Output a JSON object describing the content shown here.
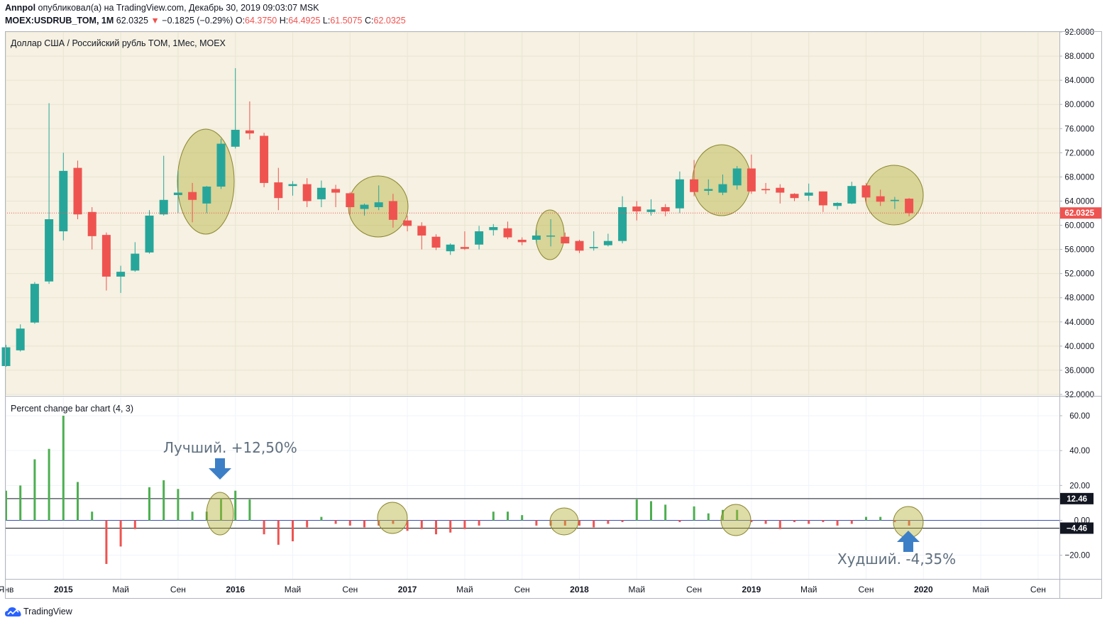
{
  "header": {
    "author": "Annpol",
    "published_text": "опубликовал(а) на TradingView.com, Декабрь 30, 2019 09:03:07 MSK",
    "symbol": "MOEX:USDRUB_TOM, 1M",
    "last": "62.0325",
    "change_arrow": "▼",
    "change": "−0.1825 (−0.29%)",
    "o_label": "O:",
    "o_value": "64.3750",
    "h_label": "H:",
    "h_value": "64.4925",
    "l_label": "L:",
    "l_value": "61.5075",
    "c_label": "C:",
    "c_value": "62.0325"
  },
  "footer": {
    "logo_text": "TradingView",
    "logo_icon": "tradingview-cloud-icon"
  },
  "colors": {
    "up": "#26a69a",
    "down": "#ef5350",
    "bar_up": "#4caf50",
    "bar_down": "#ef5350",
    "pane_bg": "#f6f1e2",
    "ellipse_fill": "#b5b13c",
    "ellipse_stroke": "#8a8630",
    "price_line": "#ef5350",
    "arrow": "#3d7fc7",
    "annotation_text": "#5f6f7e"
  },
  "chart_data": [
    {
      "type": "candlestick",
      "title": "Доллар США / Российский рубль TOM, 1Мес, MOEX",
      "ylim": [
        32,
        92
      ],
      "y_ticks": [
        "92.0000",
        "88.0000",
        "84.0000",
        "80.0000",
        "76.0000",
        "72.0000",
        "68.0000",
        "64.0000",
        "60.0000",
        "56.0000",
        "52.0000",
        "48.0000",
        "44.0000",
        "40.0000",
        "36.0000",
        "32.0000"
      ],
      "price_label": "62.0325",
      "price_line": 62.0325,
      "ohlc": [
        [
          36.7,
          40.2,
          36.6,
          39.8
        ],
        [
          39.3,
          43.6,
          39.1,
          42.9
        ],
        [
          43.9,
          50.6,
          43.7,
          50.3
        ],
        [
          50.7,
          80.2,
          50.3,
          61.0
        ],
        [
          59.0,
          72.0,
          57.5,
          69.0
        ],
        [
          69.5,
          70.7,
          61.0,
          61.8
        ],
        [
          62.2,
          63.0,
          56.0,
          58.2
        ],
        [
          58.4,
          58.8,
          49.2,
          51.5
        ],
        [
          51.5,
          53.3,
          48.8,
          52.3
        ],
        [
          52.5,
          57.2,
          52.3,
          55.3
        ],
        [
          55.5,
          62.5,
          55.3,
          61.6
        ],
        [
          61.8,
          71.5,
          61.6,
          64.2
        ],
        [
          65.0,
          69.0,
          62.0,
          65.4
        ],
        [
          65.5,
          67.0,
          60.5,
          64.2
        ],
        [
          63.6,
          66.5,
          62.0,
          66.4
        ],
        [
          66.4,
          74.3,
          66.0,
          73.5
        ],
        [
          73.0,
          86.0,
          72.7,
          75.8
        ],
        [
          75.7,
          80.5,
          74.2,
          75.2
        ],
        [
          74.8,
          75.3,
          66.3,
          67.0
        ],
        [
          67.1,
          69.5,
          62.5,
          64.5
        ],
        [
          66.5,
          67.3,
          64.9,
          66.8
        ],
        [
          66.8,
          67.8,
          63.0,
          64.0
        ],
        [
          64.3,
          67.4,
          63.0,
          66.2
        ],
        [
          66.0,
          66.7,
          63.0,
          65.4
        ],
        [
          65.3,
          65.5,
          61.8,
          63.0
        ],
        [
          62.7,
          63.6,
          61.6,
          63.4
        ],
        [
          63.0,
          66.6,
          62.5,
          63.8
        ],
        [
          64.0,
          65.2,
          59.6,
          60.9
        ],
        [
          60.8,
          61.6,
          59.0,
          59.9
        ],
        [
          59.9,
          60.5,
          56.0,
          58.3
        ],
        [
          58.1,
          58.5,
          55.9,
          56.3
        ],
        [
          55.7,
          57.0,
          55.1,
          56.8
        ],
        [
          56.4,
          59.0,
          55.9,
          56.1
        ],
        [
          56.8,
          59.9,
          56.0,
          59.0
        ],
        [
          59.2,
          60.2,
          58.3,
          59.7
        ],
        [
          59.5,
          60.6,
          57.7,
          58.0
        ],
        [
          57.6,
          58.0,
          56.7,
          57.2
        ],
        [
          57.6,
          59.2,
          57.0,
          58.3
        ],
        [
          58.2,
          61.0,
          56.5,
          58.3
        ],
        [
          58.1,
          58.8,
          57.5,
          57.0
        ],
        [
          57.4,
          57.6,
          55.4,
          55.8
        ],
        [
          56.2,
          59.0,
          55.8,
          56.4
        ],
        [
          56.7,
          58.6,
          56.5,
          57.4
        ],
        [
          57.4,
          64.8,
          57.0,
          63.0
        ],
        [
          63.1,
          64.0,
          60.8,
          62.3
        ],
        [
          62.2,
          64.3,
          61.6,
          62.6
        ],
        [
          63.0,
          63.5,
          61.5,
          62.3
        ],
        [
          62.8,
          68.9,
          62.0,
          67.6
        ],
        [
          67.6,
          70.8,
          64.8,
          65.5
        ],
        [
          65.7,
          67.6,
          65.0,
          66.0
        ],
        [
          65.4,
          68.4,
          65.0,
          66.8
        ],
        [
          66.6,
          69.8,
          65.9,
          69.4
        ],
        [
          69.4,
          71.7,
          65.2,
          65.6
        ],
        [
          66.0,
          67.0,
          65.2,
          65.8
        ],
        [
          66.2,
          66.8,
          63.6,
          65.4
        ],
        [
          65.2,
          65.3,
          64.0,
          64.5
        ],
        [
          64.9,
          66.9,
          64.0,
          65.4
        ],
        [
          65.6,
          65.6,
          62.2,
          63.3
        ],
        [
          63.2,
          63.8,
          62.6,
          63.7
        ],
        [
          63.6,
          67.2,
          63.5,
          66.5
        ],
        [
          66.6,
          67.0,
          63.6,
          64.6
        ],
        [
          64.8,
          65.9,
          63.2,
          63.9
        ],
        [
          64.0,
          64.7,
          62.7,
          64.2
        ],
        [
          64.4,
          64.5,
          61.5,
          62.0
        ]
      ]
    },
    {
      "type": "bar",
      "title": "Percent change bar chart (4, 3)",
      "ylim": [
        -33,
        66
      ],
      "y_ticks": [
        "60.00",
        "40.00",
        "20.00",
        "0.00",
        "−20.00"
      ],
      "levels": [
        12.46,
        -4.46
      ],
      "level_labels": [
        "12.46",
        "−4.46"
      ],
      "values": [
        17,
        20,
        35,
        41,
        60,
        22,
        5,
        -25,
        -15,
        -5,
        19,
        23,
        18,
        5,
        5,
        12.5,
        17,
        12,
        -8,
        -14,
        -12,
        -4,
        2,
        -2,
        -3,
        -4,
        -3,
        -2,
        -6,
        -5,
        -8,
        -7,
        -5,
        -3,
        5,
        5,
        3,
        -3,
        -3,
        -3,
        -3,
        -4,
        -2,
        -1,
        12,
        11,
        9,
        -1,
        8,
        4,
        6,
        6,
        -1,
        -2,
        -5,
        -1,
        -2,
        -1,
        -3,
        -2,
        2,
        2,
        -1,
        -3
      ],
      "x_ticks": [
        "Янв",
        "2015",
        "Май",
        "Сен",
        "2016",
        "Май",
        "Сен",
        "2017",
        "Май",
        "Сен",
        "2018",
        "Май",
        "Сен",
        "2019",
        "Май",
        "Сен",
        "2020",
        "Май",
        "Сен"
      ],
      "annotations": {
        "best": "Лучший. +12,50%",
        "worst": "Худший. -4,35%"
      }
    }
  ]
}
